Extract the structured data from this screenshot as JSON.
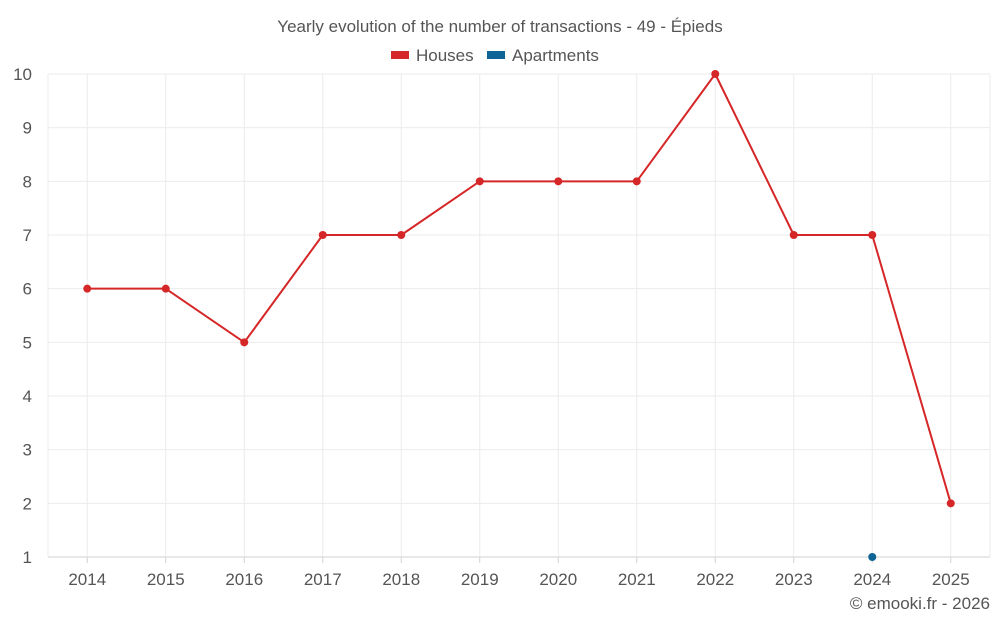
{
  "chart_data": {
    "type": "line",
    "title": "Yearly evolution of the number of transactions - 49 - Épieds",
    "categories": [
      "2014",
      "2015",
      "2016",
      "2017",
      "2018",
      "2019",
      "2020",
      "2021",
      "2022",
      "2023",
      "2024",
      "2025"
    ],
    "ylim": [
      1,
      10
    ],
    "yticks": [
      1,
      2,
      3,
      4,
      5,
      6,
      7,
      8,
      9,
      10
    ],
    "grid": true,
    "legend_position": "top-center",
    "series": [
      {
        "name": "Houses",
        "color": "#d62728",
        "values": [
          6,
          6,
          5,
          7,
          7,
          8,
          8,
          8,
          10,
          7,
          7,
          2
        ]
      },
      {
        "name": "Apartments",
        "color": "#0f6496",
        "values": [
          null,
          null,
          null,
          null,
          null,
          null,
          null,
          null,
          null,
          null,
          1,
          null
        ]
      }
    ],
    "credit": "© emooki.fr - 2026"
  }
}
